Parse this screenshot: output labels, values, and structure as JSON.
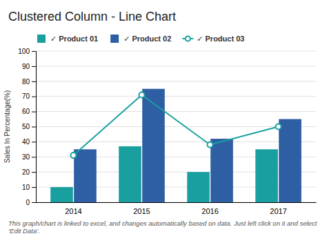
{
  "chart_data": {
    "type": "bar",
    "title": "Clustered Column - Line Chart",
    "y_label": "Sales In Percentage(%)",
    "categories": [
      "2014",
      "2015",
      "2016",
      "2017"
    ],
    "series": [
      {
        "name": "✓ Product 01",
        "color": "#1a9fa0",
        "values": [
          10,
          37,
          20,
          35
        ]
      },
      {
        "name": "✓ Product 02",
        "color": "#2e5fa3",
        "values": [
          35,
          75,
          42,
          55
        ]
      },
      {
        "name": "✓ Product 03",
        "color": "#1a9fa0",
        "type": "line",
        "marker": "circle",
        "line_style": "solid",
        "values": [
          31,
          71,
          38,
          50
        ]
      }
    ],
    "ylim": [
      0,
      100
    ],
    "yticks": [
      0,
      10,
      20,
      30,
      40,
      50,
      60,
      70,
      80,
      90,
      100
    ],
    "grid": true,
    "legend": "upper left",
    "annotations": [
      "This graph/chart is linked to excel, and changes automatically based on data. Just left click on it and select ‘Edit Data’."
    ]
  }
}
